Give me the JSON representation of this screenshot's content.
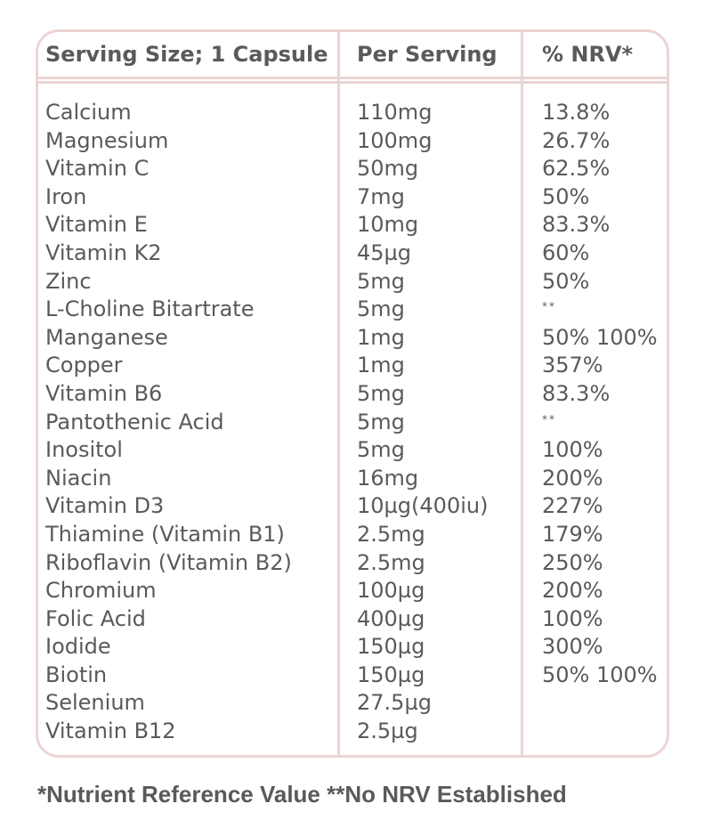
{
  "table": {
    "headers": {
      "serving": "Serving Size; 1 Capsule",
      "per_serving": "Per Serving",
      "nrv": "% NRV*"
    },
    "rows": [
      {
        "nutrient": "Calcium",
        "amount": "110mg",
        "nrv": "13.8%"
      },
      {
        "nutrient": "Magnesium",
        "amount": "100mg",
        "nrv": "26.7%"
      },
      {
        "nutrient": "Vitamin C",
        "amount": "50mg",
        "nrv": "62.5%"
      },
      {
        "nutrient": "Iron",
        "amount": "7mg",
        "nrv": "50%"
      },
      {
        "nutrient": "Vitamin E",
        "amount": "10mg",
        "nrv": "83.3%"
      },
      {
        "nutrient": "Vitamin K2",
        "amount": "45µg",
        "nrv": "60%"
      },
      {
        "nutrient": "Zinc",
        "amount": "5mg",
        "nrv": "50%"
      },
      {
        "nutrient": "L-Choline Bitartrate",
        "amount": "5mg",
        "nrv": "**"
      },
      {
        "nutrient": "Manganese",
        "amount": "1mg",
        "nrv": "50% 100%"
      },
      {
        "nutrient": "Copper",
        "amount": "1mg",
        "nrv": "357%"
      },
      {
        "nutrient": "Vitamin B6",
        "amount": "5mg",
        "nrv": "83.3%"
      },
      {
        "nutrient": "Pantothenic Acid",
        "amount": "5mg",
        "nrv": "**"
      },
      {
        "nutrient": "Inositol",
        "amount": "5mg",
        "nrv": "100%"
      },
      {
        "nutrient": "Niacin",
        "amount": "16mg",
        "nrv": "200%"
      },
      {
        "nutrient": "Vitamin D3",
        "amount": "10µg(400iu)",
        "nrv": "227%"
      },
      {
        "nutrient": "Thiamine (Vitamin B1)",
        "amount": "2.5mg",
        "nrv": "179%"
      },
      {
        "nutrient": "Riboflavin (Vitamin B2)",
        "amount": "2.5mg",
        "nrv": "250%"
      },
      {
        "nutrient": "Chromium",
        "amount": "100µg",
        "nrv": "200%"
      },
      {
        "nutrient": "Folic Acid",
        "amount": "400µg",
        "nrv": "100%"
      },
      {
        "nutrient": "Iodide",
        "amount": "150µg",
        "nrv": "300%"
      },
      {
        "nutrient": "Biotin",
        "amount": "150µg",
        "nrv": "50% 100%"
      },
      {
        "nutrient": "Selenium",
        "amount": "27.5µg",
        "nrv": ""
      },
      {
        "nutrient": "Vitamin B12",
        "amount": "2.5µg",
        "nrv": ""
      }
    ]
  },
  "footnote": "*Nutrient Reference Value **No NRV Established",
  "colors": {
    "border": "#ecd4d4",
    "text": "#5a5a5a"
  }
}
